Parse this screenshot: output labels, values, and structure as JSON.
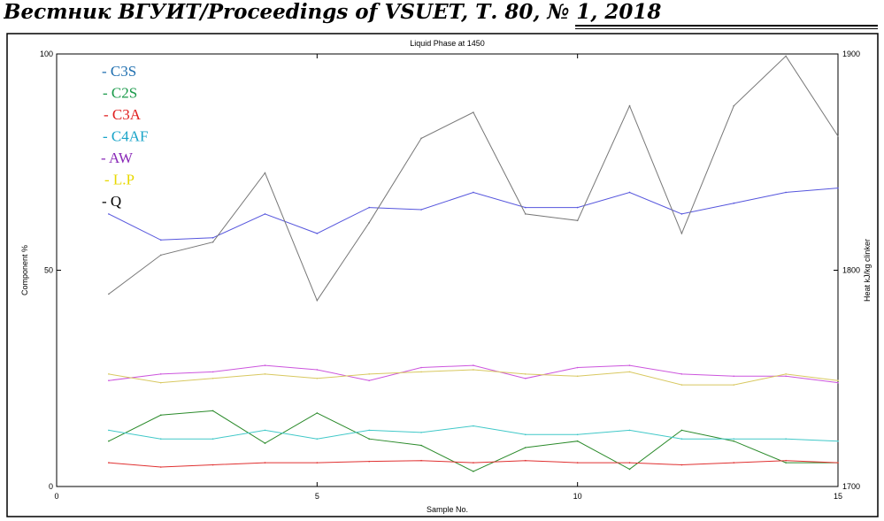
{
  "header": {
    "text": "Вестник ВГУИТ/Proceedings of VSUET, Т. 80, № 1, 2018"
  },
  "chart_data": {
    "type": "line",
    "title": "Liquid Phase at 1450",
    "xlabel": "Sample No.",
    "ylabel": "Component %",
    "y2label": "Heat kJ/kg clinker",
    "xlim": [
      0,
      15
    ],
    "ylim": [
      0,
      100
    ],
    "y2lim": [
      1700,
      1900
    ],
    "xticks": [
      "0",
      "5",
      "10",
      "15"
    ],
    "yticks": [
      "0",
      "50",
      "100"
    ],
    "y2ticks": [
      "1700",
      "1800",
      "1900"
    ],
    "legend_position": "top-left",
    "x": [
      1,
      2,
      3,
      4,
      5,
      6,
      7,
      8,
      9,
      10,
      11,
      12,
      13,
      14,
      15
    ],
    "series": [
      {
        "name": "C3S",
        "legend": "- C3S",
        "color": "#1f6fb0",
        "line_color": "#5555dd",
        "values": [
          63,
          57,
          57.5,
          63,
          58.5,
          64.5,
          64,
          68,
          64.5,
          64.5,
          68,
          63,
          65.5,
          68,
          69
        ]
      },
      {
        "name": "C2S",
        "legend": "- C2S",
        "color": "#1a9a4a",
        "line_color": "#2a8a2a",
        "values": [
          10.5,
          16.5,
          17.5,
          10,
          17,
          11,
          9.5,
          3.5,
          9,
          10.5,
          4,
          13,
          10.5,
          5.5,
          5.5
        ]
      },
      {
        "name": "C3A",
        "legend": "- C3A",
        "color": "#e02020",
        "line_color": "#e03030",
        "values": [
          5.5,
          4.5,
          5,
          5.5,
          5.5,
          5.8,
          6,
          5.5,
          6,
          5.5,
          5.5,
          5,
          5.5,
          6,
          5.5
        ]
      },
      {
        "name": "C4AF",
        "legend": "- C4AF",
        "color": "#19a4c8",
        "line_color": "#40c8c8",
        "values": [
          13,
          11,
          11,
          13,
          11,
          13,
          12.5,
          14,
          12,
          12,
          13,
          11,
          11,
          11,
          10.5
        ]
      },
      {
        "name": "AW",
        "legend": "- AW",
        "color": "#8a2ab8",
        "line_color": "#cc55dd",
        "values": [
          24.5,
          26,
          26.5,
          28,
          27,
          24.5,
          27.5,
          28,
          25,
          27.5,
          28,
          26,
          25.5,
          25.5,
          24
        ]
      },
      {
        "name": "LP",
        "legend": "- L.P",
        "color": "#e8d800",
        "line_color": "#d8c860",
        "values": [
          26,
          24,
          25,
          26,
          25,
          26,
          26.5,
          27,
          26,
          25.5,
          26.5,
          23.5,
          23.5,
          26,
          24.5
        ]
      },
      {
        "name": "Q",
        "legend": "- Q",
        "color": "#000000",
        "line_color": "#777777",
        "axis": "right",
        "values": [
          1789,
          1807,
          1813,
          1845,
          1786,
          1822,
          1861,
          1873,
          1826,
          1823,
          1876,
          1817,
          1876,
          1899,
          1862
        ]
      }
    ]
  }
}
